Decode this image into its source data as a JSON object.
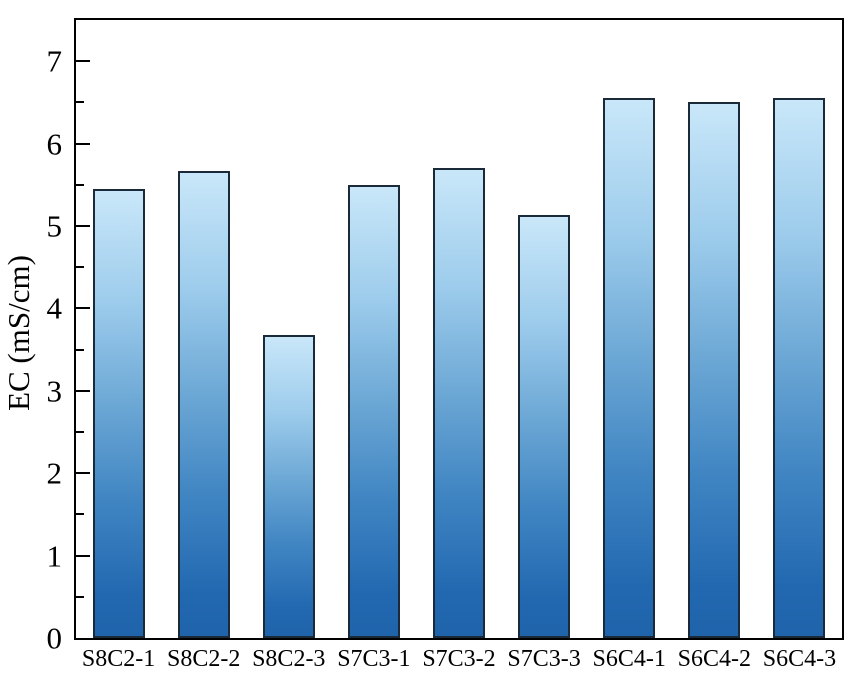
{
  "chart_data": {
    "type": "bar",
    "title": "",
    "xlabel": "",
    "ylabel": "EC (mS/cm)",
    "categories": [
      "S8C2-1",
      "S8C2-2",
      "S8C2-3",
      "S7C3-1",
      "S7C3-2",
      "S7C3-3",
      "S6C4-1",
      "S6C4-2",
      "S6C4-3"
    ],
    "values": [
      5.45,
      5.67,
      3.68,
      5.5,
      5.71,
      5.13,
      6.55,
      6.5,
      6.55
    ],
    "ylim": [
      0,
      7.5
    ],
    "yticks": [
      0,
      1,
      2,
      3,
      4,
      5,
      6,
      7
    ],
    "minor_tick_step": 0.5,
    "grid": "off",
    "legend": "none",
    "frame": "full-box",
    "tick_direction": "in",
    "colors": {
      "bar_gradient_stops": [
        {
          "color": "#c9e7f9",
          "pos": 0
        },
        {
          "color": "#9dccec",
          "pos": 25
        },
        {
          "color": "#6ea9d6",
          "pos": 47
        },
        {
          "color": "#4186c3",
          "pos": 69
        },
        {
          "color": "#2268b0",
          "pos": 91
        },
        {
          "color": "#1f64ab",
          "pos": 100
        }
      ],
      "bar_border": "#1b2a38",
      "axis": "#000000",
      "text": "#000000",
      "background": "#ffffff"
    }
  }
}
